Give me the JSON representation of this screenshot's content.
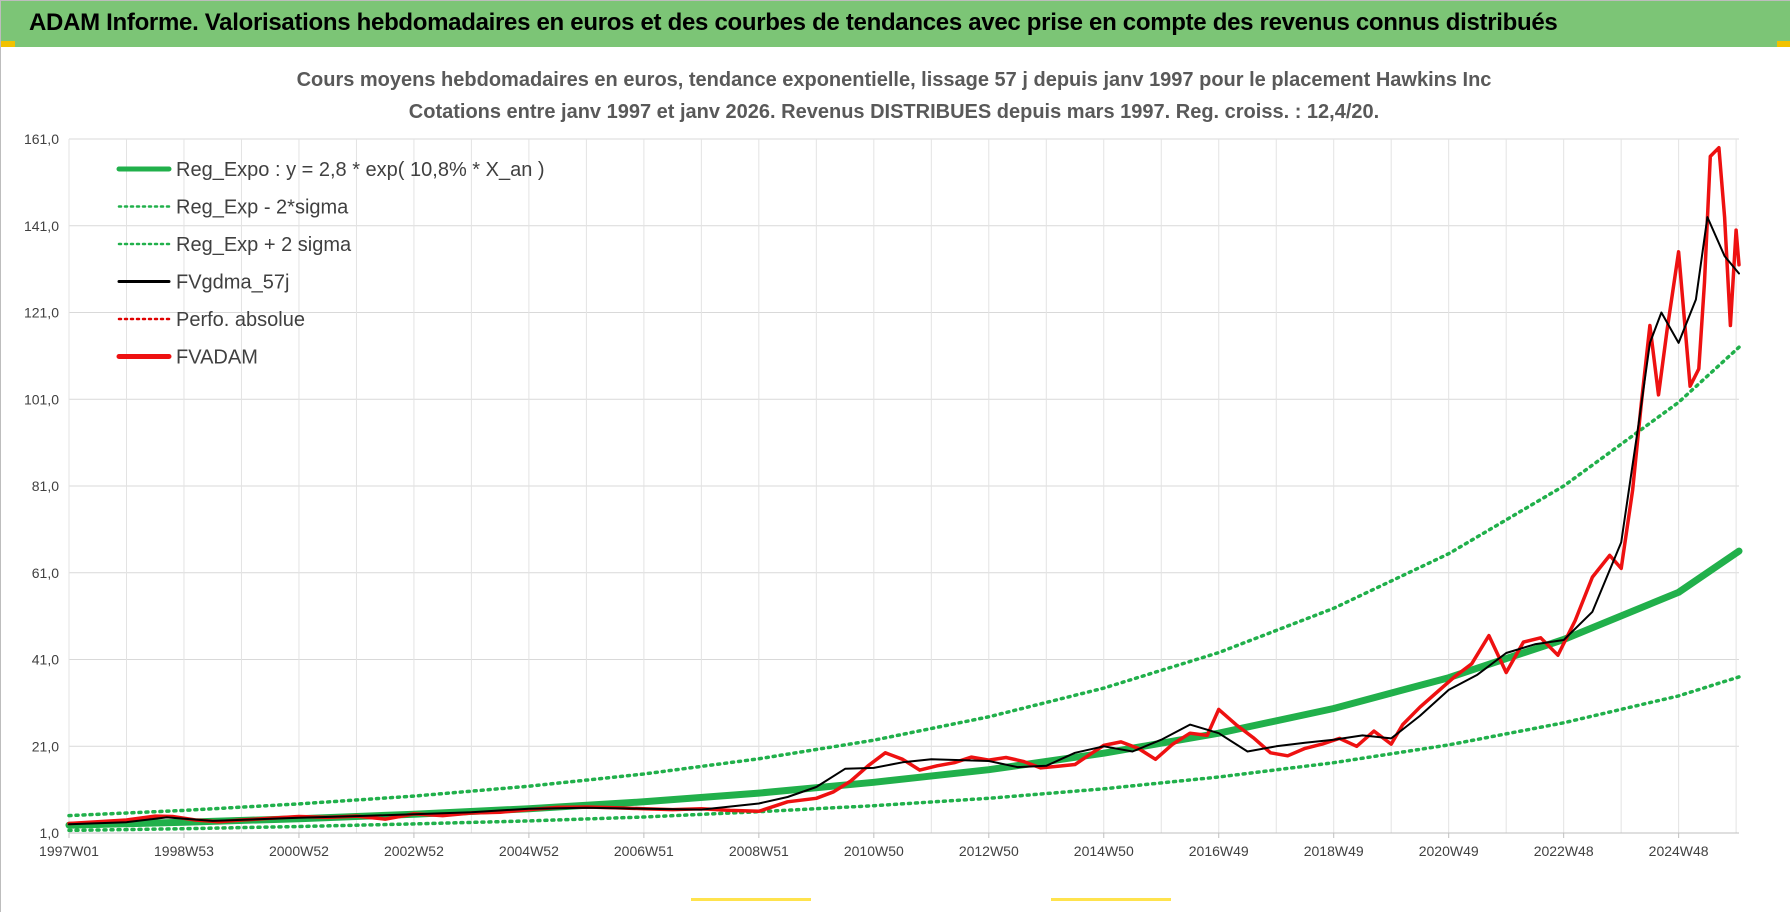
{
  "banner": {
    "title": "ADAM Informe. Valorisations hebdomadaires en euros et des courbes de tendances avec prise en compte des revenus connus distribués",
    "bg_color": "#7cc576"
  },
  "chart_data": {
    "type": "line",
    "title_line1": "Cours moyens hebdomadaires en euros, tendance exponentielle, lissage 57 j depuis janv 1997 pour le placement Hawkins Inc",
    "title_line2": "Cotations entre janv 1997 et janv 2026. Revenus DISTRIBUES depuis mars 1997. Reg. croiss. : 12,4/20.",
    "xlabel": "",
    "ylabel": "",
    "xlim": [
      1997.0,
      2026.05
    ],
    "ylim": [
      1.0,
      161.0
    ],
    "y_ticks": [
      "1,0",
      "21,0",
      "41,0",
      "61,0",
      "81,0",
      "101,0",
      "121,0",
      "141,0",
      "161,0"
    ],
    "y_tick_values": [
      1,
      21,
      41,
      61,
      81,
      101,
      121,
      141,
      161
    ],
    "x_ticks": [
      "1997W01",
      "1998W53",
      "2000W52",
      "2002W52",
      "2004W52",
      "2006W51",
      "2008W51",
      "2010W50",
      "2012W50",
      "2014W50",
      "2016W49",
      "2018W49",
      "2020W49",
      "2022W48",
      "2024W48"
    ],
    "x_tick_values": [
      1997.0,
      1999.0,
      2001.0,
      2003.0,
      2005.0,
      2007.0,
      2009.0,
      2011.0,
      2013.0,
      2015.0,
      2017.0,
      2019.0,
      2021.0,
      2023.0,
      2025.0
    ],
    "grid": true,
    "legend_position": "top-left",
    "legend": [
      {
        "label": "Reg_Expo : y = 2,8 * exp( 10,8% *  X_an )",
        "color": "#21b04b",
        "style": "thick"
      },
      {
        "label": "Reg_Exp - 2*sigma",
        "color": "#21b04b",
        "style": "dotted"
      },
      {
        "label": "Reg_Exp + 2 sigma",
        "color": "#21b04b",
        "style": "dotted"
      },
      {
        "label": "FVgdma_57j",
        "color": "#000000",
        "style": "solid"
      },
      {
        "label": "Perfo. absolue",
        "color": "#e00000",
        "style": "dotted"
      },
      {
        "label": "FVADAM",
        "color": "#ee1111",
        "style": "thick"
      }
    ],
    "series": [
      {
        "name": "Reg_Expo : y = 2,8 * exp( 10,8% *  X_an )",
        "color": "#21b04b",
        "x": [
          1997.0,
          1999.0,
          2001.0,
          2003.0,
          2005.0,
          2007.0,
          2009.0,
          2011.0,
          2013.0,
          2015.0,
          2017.0,
          2019.0,
          2021.0,
          2023.0,
          2025.0,
          2026.05
        ],
        "values": [
          2.8,
          3.5,
          4.3,
          5.3,
          6.6,
          8.2,
          10.2,
          12.7,
          15.6,
          19.4,
          24.0,
          29.7,
          36.8,
          45.6,
          56.5,
          66.0
        ]
      },
      {
        "name": "Reg_Exp - 2*sigma",
        "color": "#21b04b",
        "x": [
          1997.0,
          1999.0,
          2001.0,
          2003.0,
          2005.0,
          2007.0,
          2009.0,
          2011.0,
          2013.0,
          2015.0,
          2017.0,
          2019.0,
          2021.0,
          2023.0,
          2025.0,
          2026.05
        ],
        "values": [
          1.6,
          2.0,
          2.5,
          3.1,
          3.8,
          4.7,
          5.9,
          7.3,
          9.0,
          11.2,
          13.9,
          17.2,
          21.3,
          26.4,
          32.6,
          37.0
        ]
      },
      {
        "name": "Reg_Exp + 2 sigma",
        "color": "#21b04b",
        "x": [
          1997.0,
          1999.0,
          2001.0,
          2003.0,
          2005.0,
          2007.0,
          2009.0,
          2011.0,
          2013.0,
          2015.0,
          2017.0,
          2019.0,
          2021.0,
          2023.0,
          2025.0,
          2026.05
        ],
        "values": [
          5.0,
          6.2,
          7.7,
          9.5,
          11.8,
          14.6,
          18.1,
          22.4,
          27.8,
          34.4,
          42.6,
          52.8,
          65.4,
          81.0,
          100.3,
          113.0
        ]
      },
      {
        "name": "FVgdma_57j",
        "color": "#000000",
        "x": [
          1997.0,
          1998.0,
          1998.7,
          1999.5,
          2001.0,
          2002.0,
          2003.0,
          2004.0,
          2005.0,
          2006.0,
          2007.0,
          2008.0,
          2009.0,
          2009.5,
          2010.0,
          2010.5,
          2011.0,
          2011.5,
          2012.0,
          2012.5,
          2013.0,
          2013.5,
          2014.0,
          2014.5,
          2015.0,
          2015.5,
          2016.0,
          2016.5,
          2017.0,
          2017.5,
          2018.0,
          2018.5,
          2019.0,
          2019.5,
          2020.0,
          2020.5,
          2021.0,
          2021.5,
          2022.0,
          2022.5,
          2023.0,
          2023.5,
          2024.0,
          2024.3,
          2024.5,
          2024.7,
          2025.0,
          2025.3,
          2025.5,
          2025.8,
          2026.05
        ],
        "values": [
          3.0,
          3.5,
          4.6,
          3.8,
          4.5,
          4.9,
          5.3,
          5.8,
          6.6,
          6.8,
          6.6,
          6.4,
          7.8,
          9.3,
          11.6,
          15.8,
          16.0,
          17.3,
          18.0,
          17.8,
          17.6,
          16.2,
          16.5,
          19.5,
          21.0,
          19.8,
          22.5,
          26.0,
          24.0,
          19.8,
          21.0,
          21.8,
          22.5,
          23.5,
          22.8,
          28.0,
          34.0,
          37.5,
          42.5,
          44.5,
          45.5,
          52.0,
          68.0,
          95.0,
          114.0,
          121.0,
          114.0,
          124.0,
          143.0,
          134.0,
          130.0
        ]
      },
      {
        "name": "FVADAM",
        "color": "#ee1111",
        "x": [
          1997.0,
          1997.5,
          1998.0,
          1998.5,
          1998.8,
          1999.2,
          1999.6,
          2000.0,
          2000.5,
          2001.0,
          2001.5,
          2002.0,
          2002.5,
          2003.0,
          2003.5,
          2004.0,
          2004.5,
          2005.0,
          2005.5,
          2006.0,
          2006.5,
          2007.0,
          2007.5,
          2008.0,
          2008.5,
          2009.0,
          2009.5,
          2010.0,
          2010.3,
          2010.6,
          2010.9,
          2011.2,
          2011.5,
          2011.8,
          2012.1,
          2012.4,
          2012.7,
          2013.0,
          2013.3,
          2013.6,
          2013.9,
          2014.2,
          2014.5,
          2014.8,
          2015.0,
          2015.3,
          2015.6,
          2015.9,
          2016.2,
          2016.5,
          2016.8,
          2017.0,
          2017.3,
          2017.6,
          2017.9,
          2018.2,
          2018.5,
          2018.8,
          2019.1,
          2019.4,
          2019.7,
          2020.0,
          2020.2,
          2020.5,
          2020.8,
          2021.1,
          2021.4,
          2021.7,
          2022.0,
          2022.3,
          2022.6,
          2022.9,
          2023.2,
          2023.5,
          2023.8,
          2024.0,
          2024.2,
          2024.35,
          2024.5,
          2024.65,
          2024.8,
          2025.0,
          2025.2,
          2025.35,
          2025.45,
          2025.55,
          2025.7,
          2025.8,
          2025.9,
          2026.0,
          2026.05
        ],
        "values": [
          3.2,
          3.6,
          4.0,
          4.9,
          4.8,
          4.0,
          3.6,
          4.0,
          4.4,
          4.8,
          4.6,
          4.9,
          4.2,
          5.4,
          5.0,
          5.6,
          5.8,
          6.4,
          6.9,
          7.0,
          6.8,
          6.6,
          6.4,
          6.6,
          6.2,
          6.0,
          8.2,
          9.0,
          10.5,
          13.0,
          16.5,
          19.5,
          18.0,
          15.5,
          16.5,
          17.2,
          18.5,
          17.8,
          18.4,
          17.5,
          16.0,
          16.4,
          16.8,
          19.5,
          21.2,
          22.0,
          20.5,
          18.0,
          21.5,
          24.0,
          23.5,
          29.5,
          26.0,
          23.0,
          19.5,
          18.8,
          20.5,
          21.5,
          22.8,
          21.0,
          24.5,
          21.5,
          26.0,
          30.0,
          33.5,
          37.0,
          40.0,
          46.5,
          38.0,
          45.0,
          46.0,
          42.0,
          50.0,
          60.0,
          65.0,
          62.0,
          80.0,
          100.0,
          118.0,
          102.0,
          117.0,
          135.0,
          104.0,
          108.0,
          128.0,
          157.0,
          159.0,
          143.0,
          118.0,
          140.0,
          132.0
        ]
      }
    ]
  }
}
